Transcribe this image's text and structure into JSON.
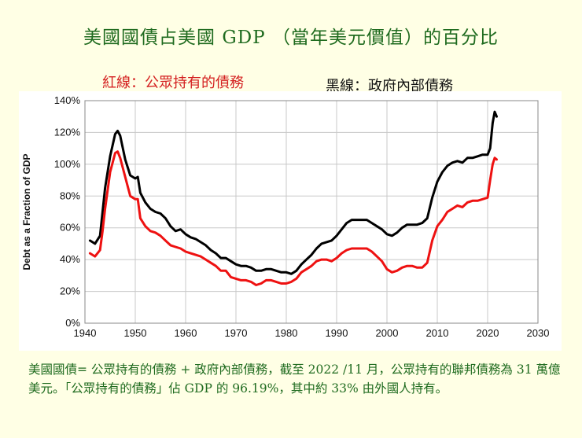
{
  "title": "美國國債占美國 GDP （當年美元價值）的百分比",
  "legend": {
    "red": "紅線：公眾持有的債務",
    "black": "黑線：政府內部債務"
  },
  "note": "美國國債= 公眾持有的債務 +  政府內部債務，截至 2022 /11 月，公眾持有的聯邦債務為 31 萬億美元。「公眾持有的債務」佔 GDP 的 96.19%，其中約 33% 由外國人持有。",
  "colors": {
    "red": "#ee1111",
    "black": "#000000",
    "title": "#1f6b1f",
    "grid": "#c8c8c8"
  },
  "chart_data": {
    "type": "line",
    "ylabel": "Debt as a Fraction of GDP",
    "xlim": [
      1940,
      2030
    ],
    "ylim": [
      0,
      140
    ],
    "x_ticks": [
      1940,
      1950,
      1960,
      1970,
      1980,
      1990,
      2000,
      2010,
      2020,
      2030
    ],
    "y_ticks": [
      "0%",
      "20%",
      "40%",
      "60%",
      "80%",
      "100%",
      "120%",
      "140%"
    ],
    "y_tick_values": [
      0,
      20,
      40,
      60,
      80,
      100,
      120,
      140
    ],
    "grid": true,
    "series": [
      {
        "color": "#000000",
        "points": [
          [
            1941,
            52
          ],
          [
            1942,
            50
          ],
          [
            1943,
            55
          ],
          [
            1943.5,
            70
          ],
          [
            1944,
            85
          ],
          [
            1945,
            105
          ],
          [
            1946,
            119
          ],
          [
            1946.5,
            121
          ],
          [
            1947,
            118
          ],
          [
            1948,
            103
          ],
          [
            1949,
            93
          ],
          [
            1950,
            91
          ],
          [
            1950.5,
            92
          ],
          [
            1951,
            82
          ],
          [
            1952,
            76
          ],
          [
            1953,
            72
          ],
          [
            1954,
            70
          ],
          [
            1955,
            69
          ],
          [
            1956,
            66
          ],
          [
            1957,
            61
          ],
          [
            1958,
            58
          ],
          [
            1959,
            59
          ],
          [
            1960,
            56
          ],
          [
            1961,
            54
          ],
          [
            1962,
            53
          ],
          [
            1963,
            51
          ],
          [
            1964,
            49
          ],
          [
            1965,
            46
          ],
          [
            1966,
            44
          ],
          [
            1967,
            41
          ],
          [
            1968,
            41
          ],
          [
            1969,
            39
          ],
          [
            1970,
            37
          ],
          [
            1971,
            36
          ],
          [
            1972,
            36
          ],
          [
            1973,
            35
          ],
          [
            1974,
            33
          ],
          [
            1975,
            33
          ],
          [
            1976,
            34
          ],
          [
            1977,
            34
          ],
          [
            1978,
            33
          ],
          [
            1979,
            32
          ],
          [
            1980,
            32
          ],
          [
            1981,
            31
          ],
          [
            1982,
            33
          ],
          [
            1983,
            37
          ],
          [
            1984,
            40
          ],
          [
            1985,
            43
          ],
          [
            1986,
            47
          ],
          [
            1987,
            50
          ],
          [
            1988,
            51
          ],
          [
            1989,
            52
          ],
          [
            1990,
            55
          ],
          [
            1991,
            59
          ],
          [
            1992,
            63
          ],
          [
            1993,
            65
          ],
          [
            1994,
            65
          ],
          [
            1995,
            65
          ],
          [
            1996,
            65
          ],
          [
            1997,
            63
          ],
          [
            1998,
            61
          ],
          [
            1999,
            59
          ],
          [
            2000,
            56
          ],
          [
            2001,
            55
          ],
          [
            2002,
            57
          ],
          [
            2003,
            60
          ],
          [
            2004,
            62
          ],
          [
            2005,
            62
          ],
          [
            2006,
            62
          ],
          [
            2007,
            63
          ],
          [
            2008,
            66
          ],
          [
            2009,
            79
          ],
          [
            2010,
            89
          ],
          [
            2011,
            95
          ],
          [
            2012,
            99
          ],
          [
            2013,
            101
          ],
          [
            2014,
            102
          ],
          [
            2015,
            101
          ],
          [
            2016,
            104
          ],
          [
            2017,
            104
          ],
          [
            2018,
            105
          ],
          [
            2019,
            106
          ],
          [
            2020,
            106
          ],
          [
            2020.5,
            110
          ],
          [
            2021,
            126
          ],
          [
            2021.4,
            133
          ],
          [
            2021.8,
            130
          ]
        ]
      },
      {
        "color": "#ee1111",
        "points": [
          [
            1941,
            44
          ],
          [
            1942,
            42
          ],
          [
            1943,
            46
          ],
          [
            1943.5,
            58
          ],
          [
            1944,
            72
          ],
          [
            1945,
            95
          ],
          [
            1946,
            107
          ],
          [
            1946.5,
            108
          ],
          [
            1947,
            104
          ],
          [
            1948,
            92
          ],
          [
            1949,
            80
          ],
          [
            1950,
            78
          ],
          [
            1950.5,
            78
          ],
          [
            1951,
            66
          ],
          [
            1952,
            61
          ],
          [
            1953,
            58
          ],
          [
            1954,
            57
          ],
          [
            1955,
            55
          ],
          [
            1956,
            52
          ],
          [
            1957,
            49
          ],
          [
            1958,
            48
          ],
          [
            1959,
            47
          ],
          [
            1960,
            45
          ],
          [
            1961,
            44
          ],
          [
            1962,
            43
          ],
          [
            1963,
            42
          ],
          [
            1964,
            40
          ],
          [
            1965,
            38
          ],
          [
            1966,
            36
          ],
          [
            1967,
            33
          ],
          [
            1968,
            33
          ],
          [
            1969,
            29
          ],
          [
            1970,
            28
          ],
          [
            1971,
            27
          ],
          [
            1972,
            27
          ],
          [
            1973,
            26
          ],
          [
            1974,
            24
          ],
          [
            1975,
            25
          ],
          [
            1976,
            27
          ],
          [
            1977,
            27
          ],
          [
            1978,
            26
          ],
          [
            1979,
            25
          ],
          [
            1980,
            25
          ],
          [
            1981,
            26
          ],
          [
            1982,
            28
          ],
          [
            1983,
            32
          ],
          [
            1984,
            34
          ],
          [
            1985,
            36
          ],
          [
            1986,
            39
          ],
          [
            1987,
            40
          ],
          [
            1988,
            40
          ],
          [
            1989,
            39
          ],
          [
            1990,
            41
          ],
          [
            1991,
            44
          ],
          [
            1992,
            46
          ],
          [
            1993,
            47
          ],
          [
            1994,
            47
          ],
          [
            1995,
            47
          ],
          [
            1996,
            47
          ],
          [
            1997,
            45
          ],
          [
            1998,
            42
          ],
          [
            1999,
            39
          ],
          [
            2000,
            34
          ],
          [
            2001,
            32
          ],
          [
            2002,
            33
          ],
          [
            2003,
            35
          ],
          [
            2004,
            36
          ],
          [
            2005,
            36
          ],
          [
            2006,
            35
          ],
          [
            2007,
            35
          ],
          [
            2008,
            38
          ],
          [
            2009,
            52
          ],
          [
            2010,
            61
          ],
          [
            2011,
            65
          ],
          [
            2012,
            70
          ],
          [
            2013,
            72
          ],
          [
            2014,
            74
          ],
          [
            2015,
            73
          ],
          [
            2016,
            76
          ],
          [
            2017,
            77
          ],
          [
            2018,
            77
          ],
          [
            2019,
            78
          ],
          [
            2020,
            79
          ],
          [
            2020.5,
            90
          ],
          [
            2021,
            100
          ],
          [
            2021.4,
            104
          ],
          [
            2021.8,
            103
          ]
        ]
      }
    ]
  }
}
